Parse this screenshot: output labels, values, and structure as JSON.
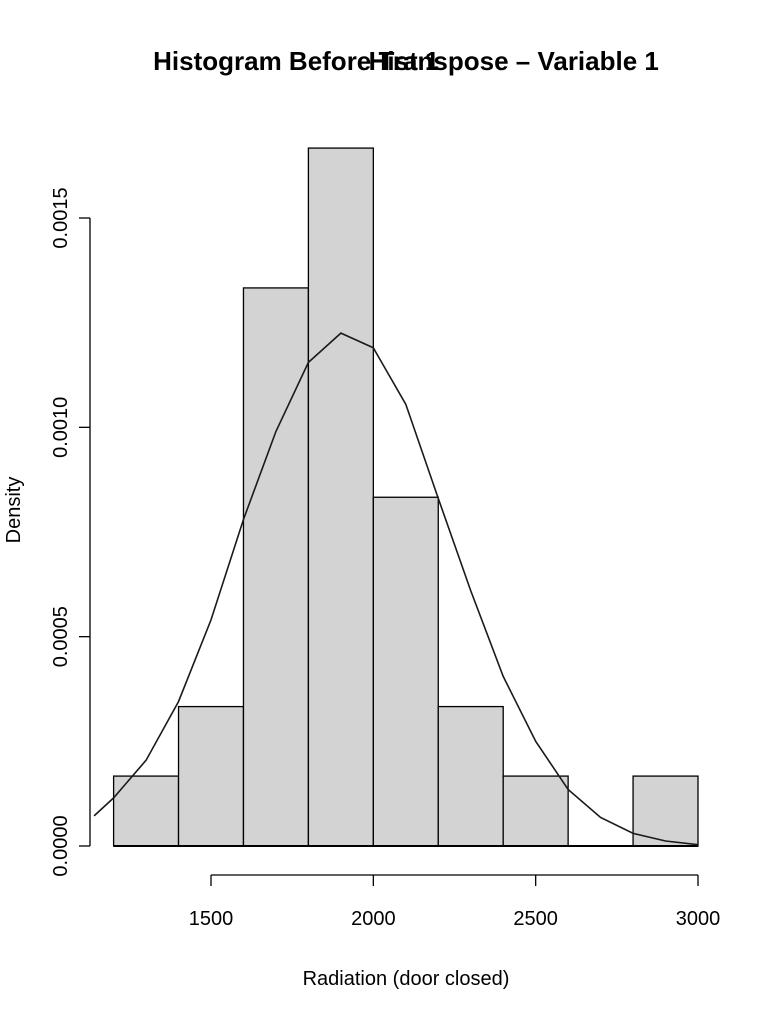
{
  "chart_data": {
    "type": "bar",
    "subtype": "histogram_with_density_curve",
    "title_layers": [
      "Histogram Before Transpose – Variable 1",
      "Hist 1"
    ],
    "title_display": "Histogram BeforeHist 1Transpose – Variable 1",
    "xlabel": "Radiation (door closed)",
    "ylabel": "Density",
    "xlim": [
      1200,
      3000
    ],
    "ylim": [
      0,
      0.0017
    ],
    "x_ticks": [
      1500,
      2000,
      2500,
      3000
    ],
    "x_tick_labels": [
      "1500",
      "2000",
      "2500",
      "3000"
    ],
    "y_ticks": [
      0,
      0.0005,
      0.001,
      0.0015
    ],
    "y_tick_labels": [
      "0.0000",
      "0.0005",
      "0.0010",
      "0.0015"
    ],
    "bin_edges": [
      1200,
      1400,
      1600,
      1800,
      2000,
      2200,
      2400,
      2600,
      2800,
      3000
    ],
    "categories": [
      "1200-1400",
      "1400-1600",
      "1600-1800",
      "1800-2000",
      "2000-2200",
      "2200-2400",
      "2400-2600",
      "2600-2800",
      "2800-3000"
    ],
    "values": [
      0.000167,
      0.000333,
      0.001333,
      0.001667,
      0.000833,
      0.000333,
      0.000167,
      0.0,
      0.000167
    ],
    "counts_estimated": [
      2,
      4,
      16,
      20,
      10,
      4,
      2,
      0,
      2
    ],
    "density_curve": {
      "x": [
        1140,
        1200,
        1300,
        1400,
        1500,
        1600,
        1700,
        1800,
        1900,
        2000,
        2100,
        2200,
        2300,
        2400,
        2500,
        2600,
        2700,
        2800,
        2900,
        3000
      ],
      "y": [
        7.2e-05,
        0.000115,
        0.000205,
        0.000345,
        0.00054,
        0.00078,
        0.00099,
        0.001155,
        0.001225,
        0.00119,
        0.001055,
        0.00083,
        0.00061,
        0.000405,
        0.00025,
        0.000135,
        6.8e-05,
        3e-05,
        1.2e-05,
        3e-06
      ]
    },
    "grid": false,
    "legend": null,
    "colors": {
      "bar_fill": "#d3d3d3",
      "bar_stroke": "#000000",
      "curve": "#1a1a1a"
    }
  }
}
